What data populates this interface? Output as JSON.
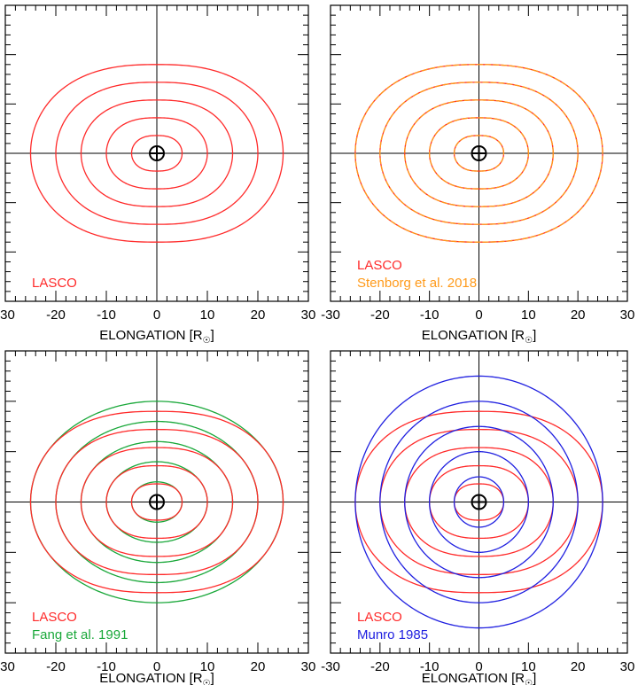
{
  "chart_data": [
    {
      "type": "line",
      "panel": "top-left",
      "title": "",
      "xlabel_main": "ELONGATION [R",
      "xlabel_sub": "☉",
      "xlabel_close": "]",
      "xlim": [
        -30,
        30
      ],
      "ylim": [
        -30,
        30
      ],
      "x_ticks": [
        "-30",
        "-20",
        "-10",
        "0",
        "10",
        "20",
        "30"
      ],
      "x_tick_values": [
        -30,
        -20,
        -10,
        0,
        10,
        20,
        30
      ],
      "show_y_labels": false,
      "legend_placement": "bottom-left",
      "legend": [
        {
          "label": "LASCO",
          "color": "#ff2a2a"
        }
      ],
      "series": [
        {
          "model": "lasco",
          "color": "#ff2a2a",
          "levels": [
            5,
            10,
            15,
            20,
            25
          ]
        }
      ]
    },
    {
      "type": "line",
      "panel": "top-right",
      "title": "",
      "xlabel_main": "ELONGATION [R",
      "xlabel_sub": "☉",
      "xlabel_close": "]",
      "xlim": [
        -30,
        30
      ],
      "ylim": [
        -30,
        30
      ],
      "x_ticks": [
        "-30",
        "-20",
        "-10",
        "0",
        "10",
        "20",
        "30"
      ],
      "x_tick_values": [
        -30,
        -20,
        -10,
        0,
        10,
        20,
        30
      ],
      "show_y_labels": false,
      "legend_placement": "bottom-left",
      "legend": [
        {
          "label": "LASCO",
          "color": "#ff2a2a"
        },
        {
          "label": "Stenborg et al. 2018",
          "color": "#ff9a1a"
        }
      ],
      "series": [
        {
          "model": "lasco",
          "color": "#ff2a2a",
          "levels": [
            5,
            10,
            15,
            20,
            25
          ]
        },
        {
          "model": "lasco",
          "color": "#ff9a1a",
          "levels": [
            5,
            10,
            15,
            20,
            25
          ],
          "dashed": true
        }
      ]
    },
    {
      "type": "line",
      "panel": "bottom-left",
      "title": "",
      "xlabel_main": "ELONGATION [R",
      "xlabel_sub": "☉",
      "xlabel_close": "]",
      "xlim": [
        -30,
        30
      ],
      "ylim": [
        -30,
        30
      ],
      "x_ticks": [
        "-30",
        "-20",
        "-10",
        "0",
        "10",
        "20",
        "30"
      ],
      "x_tick_values": [
        -30,
        -20,
        -10,
        0,
        10,
        20,
        30
      ],
      "show_y_labels": false,
      "legend_placement": "bottom-left",
      "legend": [
        {
          "label": "LASCO",
          "color": "#ff2a2a"
        },
        {
          "label": "Fang et al. 1991",
          "color": "#1aa83a"
        }
      ],
      "series": [
        {
          "model": "ellipse",
          "color": "#1aa83a",
          "levels": [
            5,
            10,
            15,
            20,
            25
          ],
          "ratio": 0.8
        },
        {
          "model": "lasco",
          "color": "#ff2a2a",
          "levels": [
            5,
            10,
            15,
            20,
            25
          ]
        }
      ]
    },
    {
      "type": "line",
      "panel": "bottom-right",
      "title": "",
      "xlabel_main": "ELONGATION [R",
      "xlabel_sub": "☉",
      "xlabel_close": "]",
      "xlim": [
        -30,
        30
      ],
      "ylim": [
        -30,
        30
      ],
      "x_ticks": [
        "-30",
        "-20",
        "-10",
        "0",
        "10",
        "20",
        "30"
      ],
      "x_tick_values": [
        -30,
        -20,
        -10,
        0,
        10,
        20,
        30
      ],
      "show_y_labels": false,
      "legend_placement": "bottom-left",
      "legend": [
        {
          "label": "LASCO",
          "color": "#ff2a2a"
        },
        {
          "label": "Munro 1985",
          "color": "#2020e0"
        }
      ],
      "series": [
        {
          "model": "lasco",
          "color": "#ff2a2a",
          "levels": [
            5,
            10,
            15,
            20,
            25
          ]
        },
        {
          "model": "ellipse",
          "color": "#2020e0",
          "levels": [
            5,
            10,
            15,
            20,
            25
          ],
          "ratio": 1.0
        }
      ]
    }
  ]
}
